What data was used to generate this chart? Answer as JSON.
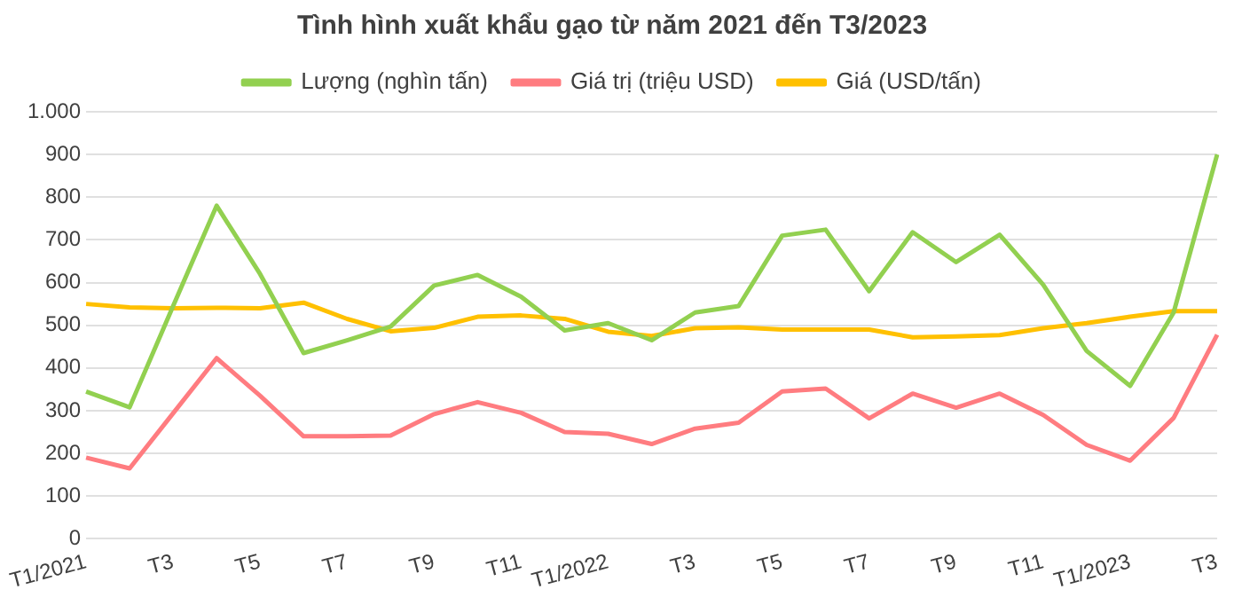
{
  "chart_data": {
    "type": "line",
    "title": "Tình hình xuất khẩu gạo từ năm 2021 đến T3/2023",
    "categories": [
      "T1/2021",
      null,
      "T3",
      null,
      "T5",
      null,
      "T7",
      null,
      "T9",
      null,
      "T11",
      null,
      "T1/2022",
      null,
      "T3",
      null,
      "T5",
      null,
      "T7",
      null,
      "T9",
      null,
      "T11",
      null,
      "T1/2023",
      null,
      "T3"
    ],
    "series": [
      {
        "name": "Lượng (nghìn tấn)",
        "color": "#92d050",
        "values": [
          345,
          308,
          545,
          780,
          620,
          435,
          465,
          497,
          593,
          618,
          567,
          488,
          505,
          465,
          530,
          545,
          710,
          724,
          580,
          718,
          648,
          712,
          595,
          440,
          358,
          530,
          900
        ]
      },
      {
        "name": "Giá trị (triệu USD)",
        "color": "#ff7c80",
        "values": [
          190,
          165,
          294,
          423,
          335,
          240,
          240,
          242,
          292,
          320,
          295,
          250,
          246,
          222,
          258,
          272,
          345,
          352,
          282,
          340,
          307,
          340,
          290,
          220,
          183,
          283,
          478
        ]
      },
      {
        "name": "Giá (USD/tấn)",
        "color": "#ffc000",
        "values": [
          550,
          542,
          540,
          541,
          540,
          553,
          515,
          486,
          494,
          520,
          523,
          515,
          485,
          475,
          493,
          495,
          490,
          490,
          490,
          472,
          474,
          477,
          493,
          505,
          520,
          533,
          533
        ]
      }
    ],
    "ylim": [
      0,
      1000
    ],
    "yticks": [
      0,
      100,
      200,
      300,
      400,
      500,
      600,
      700,
      800,
      900,
      {
        "value": 1000,
        "label": "1.000"
      }
    ],
    "grid": "y",
    "legend": "top",
    "marker": "none",
    "line_style": "solid"
  }
}
